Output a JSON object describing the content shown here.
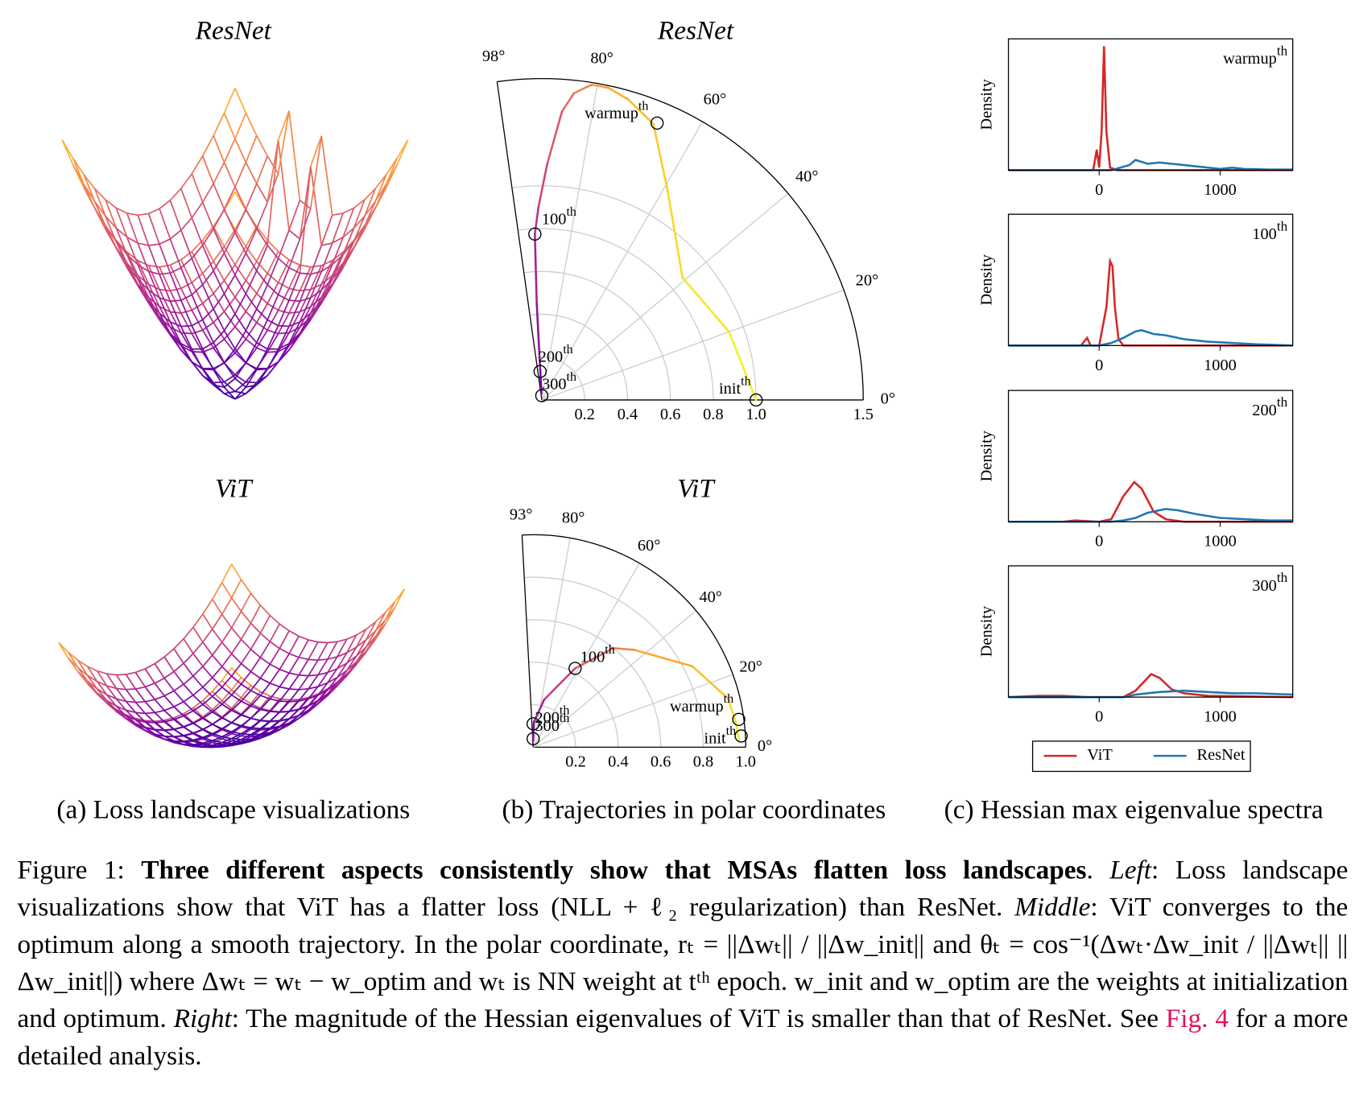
{
  "titles": [
    "ResNet",
    "ViT"
  ],
  "panels": [
    "(a) Loss landscape visualizations",
    "(b) Trajectories in polar coordinates",
    "(c) Hessian max eigenvalue spectra"
  ],
  "chart_data": [
    {
      "type": "polar",
      "title": "ResNet",
      "rlim": [
        0,
        1.5
      ],
      "rticks": [
        0.2,
        0.4,
        0.6,
        0.8,
        {
          "value": 1,
          "label": "1.0"
        },
        1.5
      ],
      "thetalim": [
        0,
        98
      ],
      "thetaticks": [
        {
          "value": 0,
          "label": "0°"
        },
        {
          "value": 20,
          "label": "20°"
        },
        {
          "value": 40,
          "label": "40°"
        },
        {
          "value": 60,
          "label": "60°"
        },
        {
          "value": 80,
          "label": "80°"
        },
        {
          "value": 98,
          "label": "98°"
        }
      ],
      "colormap": [
        "#f0f921",
        "#f9d22a",
        "#fca636",
        "#e16462",
        "#b12a90",
        "#6a00a8"
      ],
      "series": [
        {
          "theta": [
            0,
            20,
            41,
            59,
            68,
            74,
            78,
            81,
            84,
            86,
            88.7,
            91,
            92.4,
            93,
            93,
            93
          ],
          "r": [
            1.0,
            0.93,
            0.87,
            1.14,
            1.39,
            1.46,
            1.49,
            1.49,
            1.44,
            1.35,
            1.1,
            0.9,
            0.775,
            0.45,
            0.14,
            0.03
          ]
        }
      ],
      "annotations": [
        {
          "text": "init",
          "sup": "th",
          "r": 1.0,
          "theta": 0
        },
        {
          "text": "warmup",
          "sup": "th",
          "r": 1.4,
          "theta": 67.4
        },
        {
          "text": "100",
          "sup": "th",
          "r": 0.775,
          "theta": 92.4
        },
        {
          "text": "200",
          "sup": "th",
          "r": 0.133,
          "theta": 93.5
        },
        {
          "text": "300",
          "sup": "th",
          "r": 0.02,
          "theta": 90
        }
      ]
    },
    {
      "type": "polar",
      "title": "ViT",
      "rlim": [
        0,
        1
      ],
      "rticks": [
        0.2,
        0.4,
        0.6,
        0.8,
        {
          "value": 1,
          "label": "1.0"
        }
      ],
      "thetalim": [
        0,
        93
      ],
      "thetaticks": [
        {
          "value": 0,
          "label": "0°"
        },
        {
          "value": 20,
          "label": "20°"
        },
        {
          "value": 40,
          "label": "40°"
        },
        {
          "value": 60,
          "label": "60°"
        },
        {
          "value": 80,
          "label": "80°"
        },
        {
          "value": 93,
          "label": "93°"
        }
      ],
      "colormap": [
        "#f0f921",
        "#f9d22a",
        "#fca636",
        "#e16462",
        "#b12a90",
        "#6a00a8"
      ],
      "series": [
        {
          "theta": [
            2,
            7,
            14,
            27,
            44,
            51,
            62,
            77,
            88,
            92
          ],
          "r": [
            0.97,
            0.96,
            0.945,
            0.84,
            0.66,
            0.6,
            0.42,
            0.23,
            0.12,
            0.03
          ]
        }
      ],
      "annotations": [
        {
          "text": "init",
          "sup": "th",
          "r": 0.98,
          "theta": 3.1
        },
        {
          "text": "warmup",
          "sup": "th",
          "r": 0.976,
          "theta": 7.7
        },
        {
          "text": "100",
          "sup": "th",
          "r": 0.42,
          "theta": 62
        },
        {
          "text": "200",
          "sup": "th",
          "r": 0.11,
          "theta": 90
        },
        {
          "text": "300",
          "sup": "th",
          "r": 0.04,
          "theta": 90
        }
      ]
    },
    {
      "type": "density",
      "label": "warmup",
      "label_sup": "th",
      "ylabel": "Density",
      "xlim": [
        -750,
        1600
      ],
      "xticks": [
        0,
        1000
      ],
      "ylim": [
        0,
        1
      ],
      "series": [
        {
          "color": "#d62728",
          "x": [
            -750,
            -50,
            -20,
            0,
            20,
            40,
            60,
            90,
            150,
            1600
          ],
          "values": [
            0,
            0,
            0.16,
            0.02,
            0.3,
            0.97,
            0.3,
            0.02,
            0,
            0
          ]
        },
        {
          "color": "#1f77b4",
          "x": [
            -750,
            100,
            250,
            300,
            400,
            500,
            600,
            700,
            800,
            900,
            1000,
            1100,
            1200,
            1400,
            1600
          ],
          "values": [
            0,
            0,
            0.04,
            0.08,
            0.05,
            0.06,
            0.05,
            0.04,
            0.03,
            0.02,
            0.01,
            0.02,
            0.01,
            0.005,
            0.005
          ]
        }
      ]
    },
    {
      "type": "density",
      "label": "100",
      "label_sup": "th",
      "ylabel": "Density",
      "xlim": [
        -750,
        1600
      ],
      "xticks": [
        0,
        1000
      ],
      "ylim": [
        0,
        1
      ],
      "series": [
        {
          "color": "#d62728",
          "x": [
            -750,
            -150,
            -100,
            -70,
            0,
            60,
            90,
            110,
            130,
            160,
            200,
            1600
          ],
          "values": [
            0,
            0,
            0.06,
            0,
            0,
            0.3,
            0.66,
            0.62,
            0.3,
            0.05,
            0,
            0
          ]
        },
        {
          "color": "#1f77b4",
          "x": [
            -750,
            0,
            100,
            200,
            300,
            350,
            450,
            550,
            700,
            900,
            1100,
            1300,
            1600
          ],
          "values": [
            0,
            0,
            0.02,
            0.06,
            0.11,
            0.12,
            0.09,
            0.08,
            0.05,
            0.03,
            0.02,
            0.01,
            0
          ]
        }
      ]
    },
    {
      "type": "density",
      "label": "200",
      "label_sup": "th",
      "ylabel": "Density",
      "xlim": [
        -750,
        1600
      ],
      "xticks": [
        0,
        1000
      ],
      "ylim": [
        0,
        1
      ],
      "series": [
        {
          "color": "#d62728",
          "x": [
            -750,
            -300,
            -200,
            0,
            100,
            200,
            290,
            350,
            450,
            550,
            700,
            1600
          ],
          "values": [
            0,
            0,
            0.01,
            0,
            0.02,
            0.2,
            0.31,
            0.26,
            0.08,
            0.02,
            0,
            0
          ]
        },
        {
          "color": "#1f77b4",
          "x": [
            -750,
            100,
            200,
            300,
            400,
            550,
            650,
            800,
            1000,
            1200,
            1400,
            1600
          ],
          "values": [
            0,
            0,
            0.01,
            0.03,
            0.07,
            0.1,
            0.09,
            0.06,
            0.03,
            0.02,
            0.01,
            0.01
          ]
        }
      ]
    },
    {
      "type": "density",
      "label": "300",
      "label_sup": "th",
      "ylabel": "Density",
      "xlim": [
        -750,
        1600
      ],
      "xticks": [
        0,
        1000
      ],
      "ylim": [
        0,
        1
      ],
      "series": [
        {
          "name": "ViT",
          "color": "#d62728",
          "x": [
            -750,
            -500,
            -300,
            -100,
            200,
            300,
            430,
            500,
            600,
            700,
            900,
            1600
          ],
          "values": [
            0,
            0.01,
            0.01,
            0,
            0,
            0.05,
            0.18,
            0.15,
            0.06,
            0.03,
            0.01,
            0
          ]
        },
        {
          "name": "ResNet",
          "color": "#1f77b4",
          "x": [
            -750,
            200,
            300,
            500,
            700,
            900,
            1100,
            1300,
            1600
          ],
          "values": [
            0,
            0,
            0.02,
            0.04,
            0.05,
            0.04,
            0.03,
            0.03,
            0.02
          ]
        }
      ]
    }
  ],
  "caption": [
    {
      "style": "normal",
      "text": "Figure 1: "
    },
    {
      "style": "bold",
      "text": "Three different aspects consistently show that MSAs flatten loss landscapes"
    },
    {
      "style": "normal",
      "text": ". "
    },
    {
      "style": "italic",
      "text": "Left"
    },
    {
      "style": "normal",
      "text": ": Loss landscape visualizations show that ViT has a flatter loss (NLL + ℓ₂ regularization) than ResNet. "
    },
    {
      "style": "italic",
      "text": "Middle"
    },
    {
      "style": "normal",
      "text": ": ViT converges to the optimum along a smooth trajectory. In the polar coordinate, rₜ = ||Δwₜ|| / ||Δw_init|| and θₜ = cos⁻¹(Δwₜ·Δw_init / ||Δwₜ|| ||Δw_init||) where Δwₜ = wₜ − w_optim and wₜ is NN weight at tᵗʰ epoch. w_init and w_optim are the weights at initialization and optimum. "
    },
    {
      "style": "italic",
      "text": "Right"
    },
    {
      "style": "normal",
      "text": ": The magnitude of the Hessian eigenvalues of ViT is smaller than that of ResNet. See "
    },
    {
      "style": "link",
      "text": "Fig. 4"
    },
    {
      "style": "normal",
      "text": " for a more detailed analysis."
    }
  ]
}
